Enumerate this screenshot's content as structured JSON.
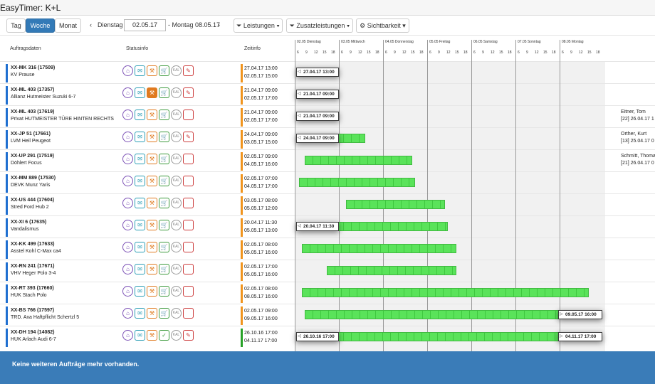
{
  "app": {
    "title": "EasyTimer:  K+L"
  },
  "toolbar": {
    "view_tabs": [
      "Tag",
      "Woche",
      "Monat"
    ],
    "active_tab": "Woche",
    "prev_label": "Dienstag",
    "date_value": "02.05.17",
    "range_text": "- Montag 08.05.17",
    "filter_leistungen": "Leistungen",
    "filter_zusatz": "Zusatzleistungen",
    "sichtbarkeit": "Sichtbarkeit"
  },
  "columns": {
    "auftrag": "Auftragsdaten",
    "status": "Statusinfo",
    "zeit": "Zeitinfo"
  },
  "days": [
    "02.05 Dienstag",
    "03.05 Mittwoch",
    "04.05 Donnerstag",
    "05.05 Freitag",
    "06.05 Samstag",
    "07.05 Sonntag",
    "08.05 Montag"
  ],
  "hours": [
    "6",
    "9",
    "12",
    "15",
    "18"
  ],
  "icon_label": "KAL",
  "rows": [
    {
      "title": "XX-MK 316 (17509)",
      "sub": "KV Prause",
      "z1": "27.04.17 13:00",
      "z2": "02.05.17 15:00",
      "zcolor": "#f0941e",
      "tag_start": "27.04.17 13:00",
      "right1": "",
      "right2": "",
      "icons": "set1"
    },
    {
      "title": "XX-ML 403 (17357)",
      "sub": "Allianz Hutmeister Suzuki 6-7",
      "z1": "21.04.17 09:00",
      "z2": "02.05.17 17:00",
      "zcolor": "#f0941e",
      "tag_start": "21.04.17 09:00",
      "right1": "Eitner, Tom",
      "right2": "[22] 26.04.17 1",
      "icons": "set2"
    },
    {
      "title": "XX-ML 403 (17619)",
      "sub": "Privat HUTMEISTER TÜRE HINTEN RECHTS",
      "z1": "21.04.17 09:00",
      "z2": "02.05.17 17:00",
      "zcolor": "#f0941e",
      "tag_start": "21.04.17 09:00",
      "right1": "Orther, Kurt",
      "right2": "[13] 25.04.17 0",
      "icons": "set3"
    },
    {
      "title": "XX-JP 51 (17661)",
      "sub": "LVM Heil Peugeot",
      "z1": "24.04.17 09:00",
      "z2": "03.05.17 15:00",
      "zcolor": "#f0941e",
      "tag_start": "24.04.17 09:00",
      "right1": "Schmitt, Thoma",
      "right2": "[21] 26.04.17 0",
      "icons": "set1"
    },
    {
      "title": "XX-UP 291 (17519)",
      "sub": "Döhlert Focus",
      "z1": "02.05.17 09:00",
      "z2": "04.05.17 16:00",
      "zcolor": "#f0941e",
      "tag_start": "",
      "right1": "",
      "right2": "",
      "icons": "set3"
    },
    {
      "title": "XX-MM 889 (17530)",
      "sub": "DEVK Munz Yaris",
      "z1": "02.05.17 07:00",
      "z2": "04.05.17 17:00",
      "zcolor": "#f0941e",
      "tag_start": "",
      "right1": "",
      "right2": "",
      "icons": "set3"
    },
    {
      "title": "XX-US 444 (17604)",
      "sub": "Stred Ford Hub 2",
      "z1": "03.05.17 08:00",
      "z2": "05.05.17 12:00",
      "zcolor": "#f0941e",
      "tag_start": "",
      "right1": "",
      "right2": "",
      "icons": "set3"
    },
    {
      "title": "XX-XI 6 (17635)",
      "sub": "Vandalismus",
      "z1": "20.04.17 11:30",
      "z2": "05.05.17 13:00",
      "zcolor": "#f0941e",
      "tag_start": "20.04.17 11:30",
      "right1": "",
      "right2": "",
      "icons": "set3"
    },
    {
      "title": "XX-KK 499 (17633)",
      "sub": "Asstel Kohl C-Max ca4",
      "z1": "02.05.17 08:00",
      "z2": "05.05.17 16:00",
      "zcolor": "#f0941e",
      "tag_start": "",
      "right1": "",
      "right2": "",
      "icons": "set3"
    },
    {
      "title": "XX-RN 241 (17671)",
      "sub": "VHV Heger Polo 3-4",
      "z1": "02.05.17 17:00",
      "z2": "05.05.17 16:00",
      "zcolor": "#f0941e",
      "tag_start": "",
      "right1": "",
      "right2": "",
      "icons": "set3"
    },
    {
      "title": "XX-RT 393 (17660)",
      "sub": "HUK Stach Polo",
      "z1": "02.05.17 08:00",
      "z2": "08.05.17 16:00",
      "zcolor": "#f0941e",
      "tag_start": "",
      "right1": "",
      "right2": "",
      "icons": "set3"
    },
    {
      "title": "XX-BS 766 (17597)",
      "sub": "TRD. Axa Haftpflicht Schertzl 5",
      "z1": "02.05.17 09:00",
      "z2": "09.05.17 16:00",
      "zcolor": "#f0941e",
      "tag_start": "",
      "tag_end": "09.05.17 16:00",
      "right1": "",
      "right2": "",
      "icons": "set3"
    },
    {
      "title": "XX-DH 194 (14082)",
      "sub": "HUK Arlach Audi 6-7",
      "z1": "26.10.16 17:00",
      "z2": "04.11.17 17:00",
      "zcolor": "#27a127",
      "tag_start": "26.10.16 17:00",
      "tag_end": "04.11.17 17:00",
      "right1": "Iller, Kathrin",
      "right2": "[14] 04.11.16 0",
      "icons": "set4"
    }
  ],
  "footer": {
    "message": "Keine weiteren Aufträge mehr vorhanden."
  }
}
